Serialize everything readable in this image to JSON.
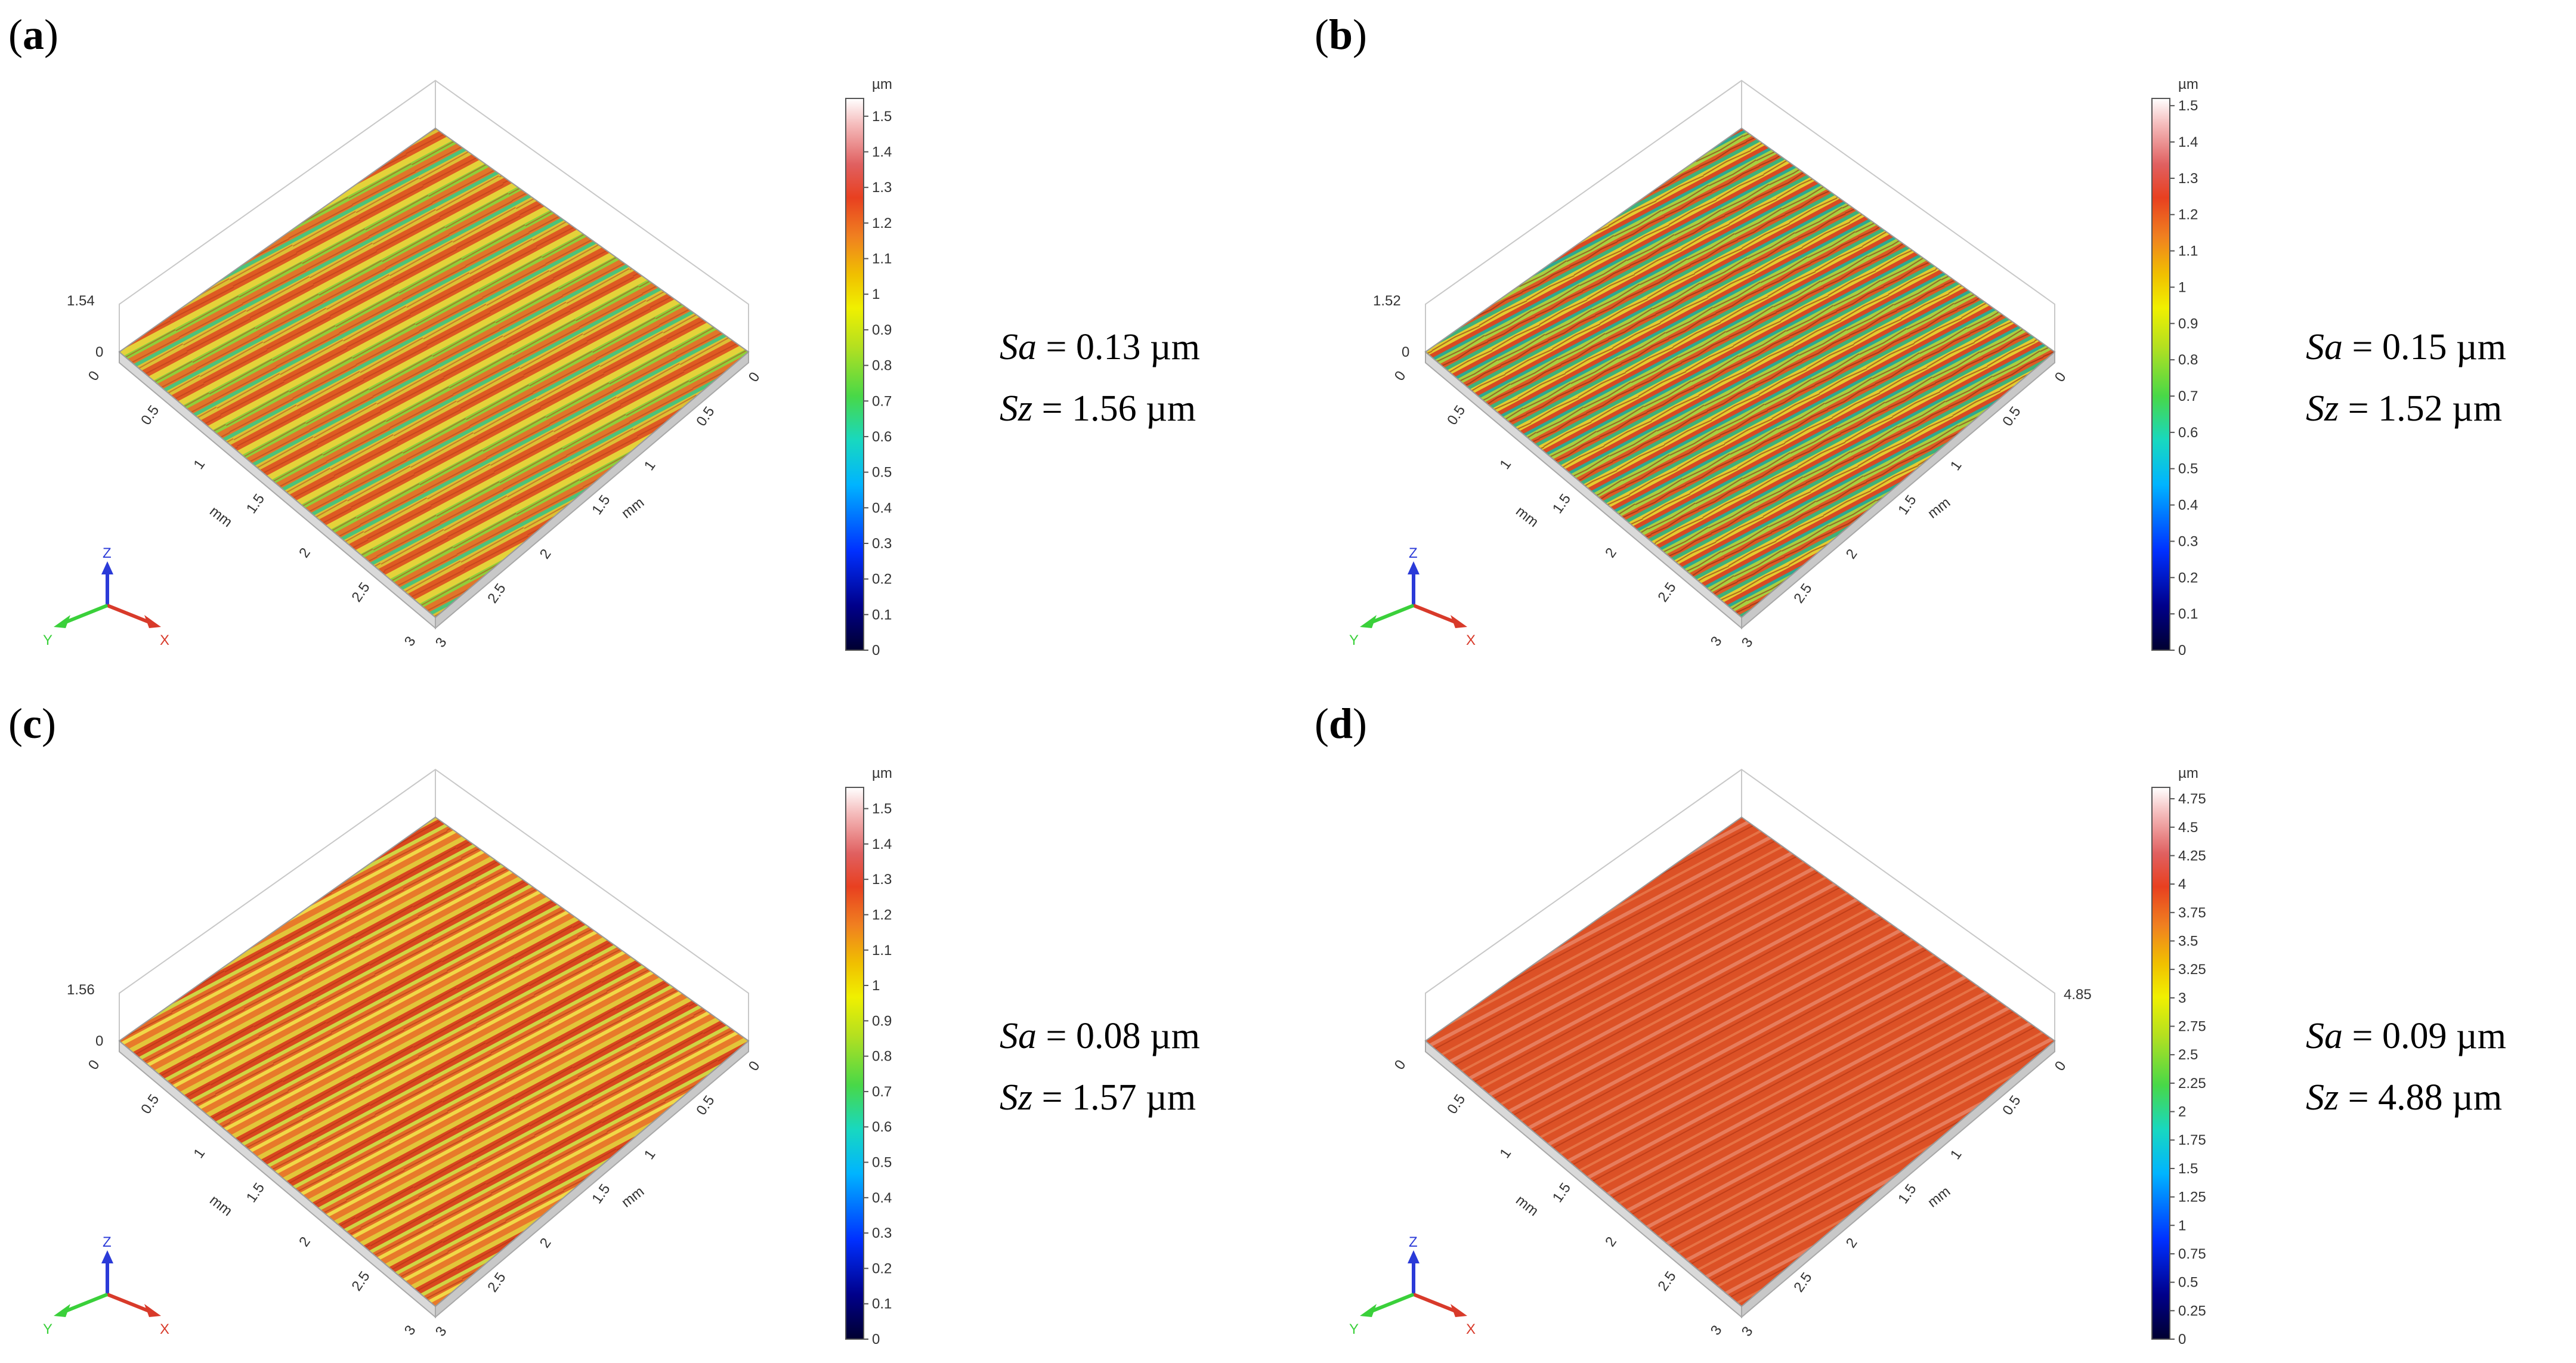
{
  "panels": [
    {
      "label": "a",
      "surface_style": "mixed",
      "z_marker": "1.54",
      "z_marker_side": "left",
      "colorbar": {
        "unit": "µm",
        "min": 0,
        "max": 1.55,
        "step": 0.1,
        "ticks": [
          "0",
          "0.1",
          "0.2",
          "0.3",
          "0.4",
          "0.5",
          "0.6",
          "0.7",
          "0.8",
          "0.9",
          "1",
          "1.1",
          "1.2",
          "1.3",
          "1.4",
          "1.5"
        ]
      },
      "sa_label": "Sa",
      "sa_value": "= 0.13 µm",
      "sz_label": "Sz",
      "sz_value": "= 1.56 µm"
    },
    {
      "label": "b",
      "surface_style": "rough",
      "z_marker": "1.52",
      "z_marker_side": "left",
      "colorbar": {
        "unit": "µm",
        "min": 0,
        "max": 1.52,
        "step": 0.1,
        "ticks": [
          "0",
          "0.1",
          "0.2",
          "0.3",
          "0.4",
          "0.5",
          "0.6",
          "0.7",
          "0.8",
          "0.9",
          "1",
          "1.1",
          "1.2",
          "1.3",
          "1.4",
          "1.5"
        ]
      },
      "sa_label": "Sa",
      "sa_value": "= 0.15 µm",
      "sz_label": "Sz",
      "sz_value": "= 1.52 µm"
    },
    {
      "label": "c",
      "surface_style": "warm",
      "z_marker": "1.56",
      "z_marker_side": "left",
      "colorbar": {
        "unit": "µm",
        "min": 0,
        "max": 1.56,
        "step": 0.1,
        "ticks": [
          "0",
          "0.1",
          "0.2",
          "0.3",
          "0.4",
          "0.5",
          "0.6",
          "0.7",
          "0.8",
          "0.9",
          "1",
          "1.1",
          "1.2",
          "1.3",
          "1.4",
          "1.5"
        ]
      },
      "sa_label": "Sa",
      "sa_value": "= 0.08 µm",
      "sz_label": "Sz",
      "sz_value": "= 1.57 µm"
    },
    {
      "label": "d",
      "surface_style": "smooth",
      "z_marker": "4.85",
      "z_marker_side": "right",
      "colorbar": {
        "unit": "µm",
        "min": 0,
        "max": 4.85,
        "step": 0.25,
        "ticks": [
          "0",
          "0.25",
          "0.5",
          "0.75",
          "1",
          "1.25",
          "1.5",
          "1.75",
          "2",
          "2.25",
          "2.5",
          "2.75",
          "3",
          "3.25",
          "3.5",
          "3.75",
          "4",
          "4.25",
          "4.5",
          "4.75"
        ]
      },
      "sa_label": "Sa",
      "sa_value": "= 0.09 µm",
      "sz_label": "Sz",
      "sz_value": "= 4.88 µm"
    }
  ],
  "axes": {
    "x_ticks": [
      "0",
      "0.5",
      "1",
      "1.5",
      "2",
      "2.5",
      "3"
    ],
    "y_ticks": [
      "0",
      "0.5",
      "1",
      "1.5",
      "2",
      "2.5",
      "3"
    ],
    "unit": "mm",
    "zero_label": "0",
    "triad": {
      "x": "X",
      "y": "Y",
      "z": "Z"
    }
  },
  "colors": {
    "ramp": [
      "#000030",
      "#00008a",
      "#0030ff",
      "#00b4ff",
      "#18d8c0",
      "#48d848",
      "#b4e020",
      "#f0f000",
      "#f0c000",
      "#f08020",
      "#e84020",
      "#e06060",
      "#f4b8b8",
      "#ffffff"
    ],
    "triad_x": "#d83a2a",
    "triad_y": "#3ad03a",
    "triad_z": "#2a3ad8"
  }
}
